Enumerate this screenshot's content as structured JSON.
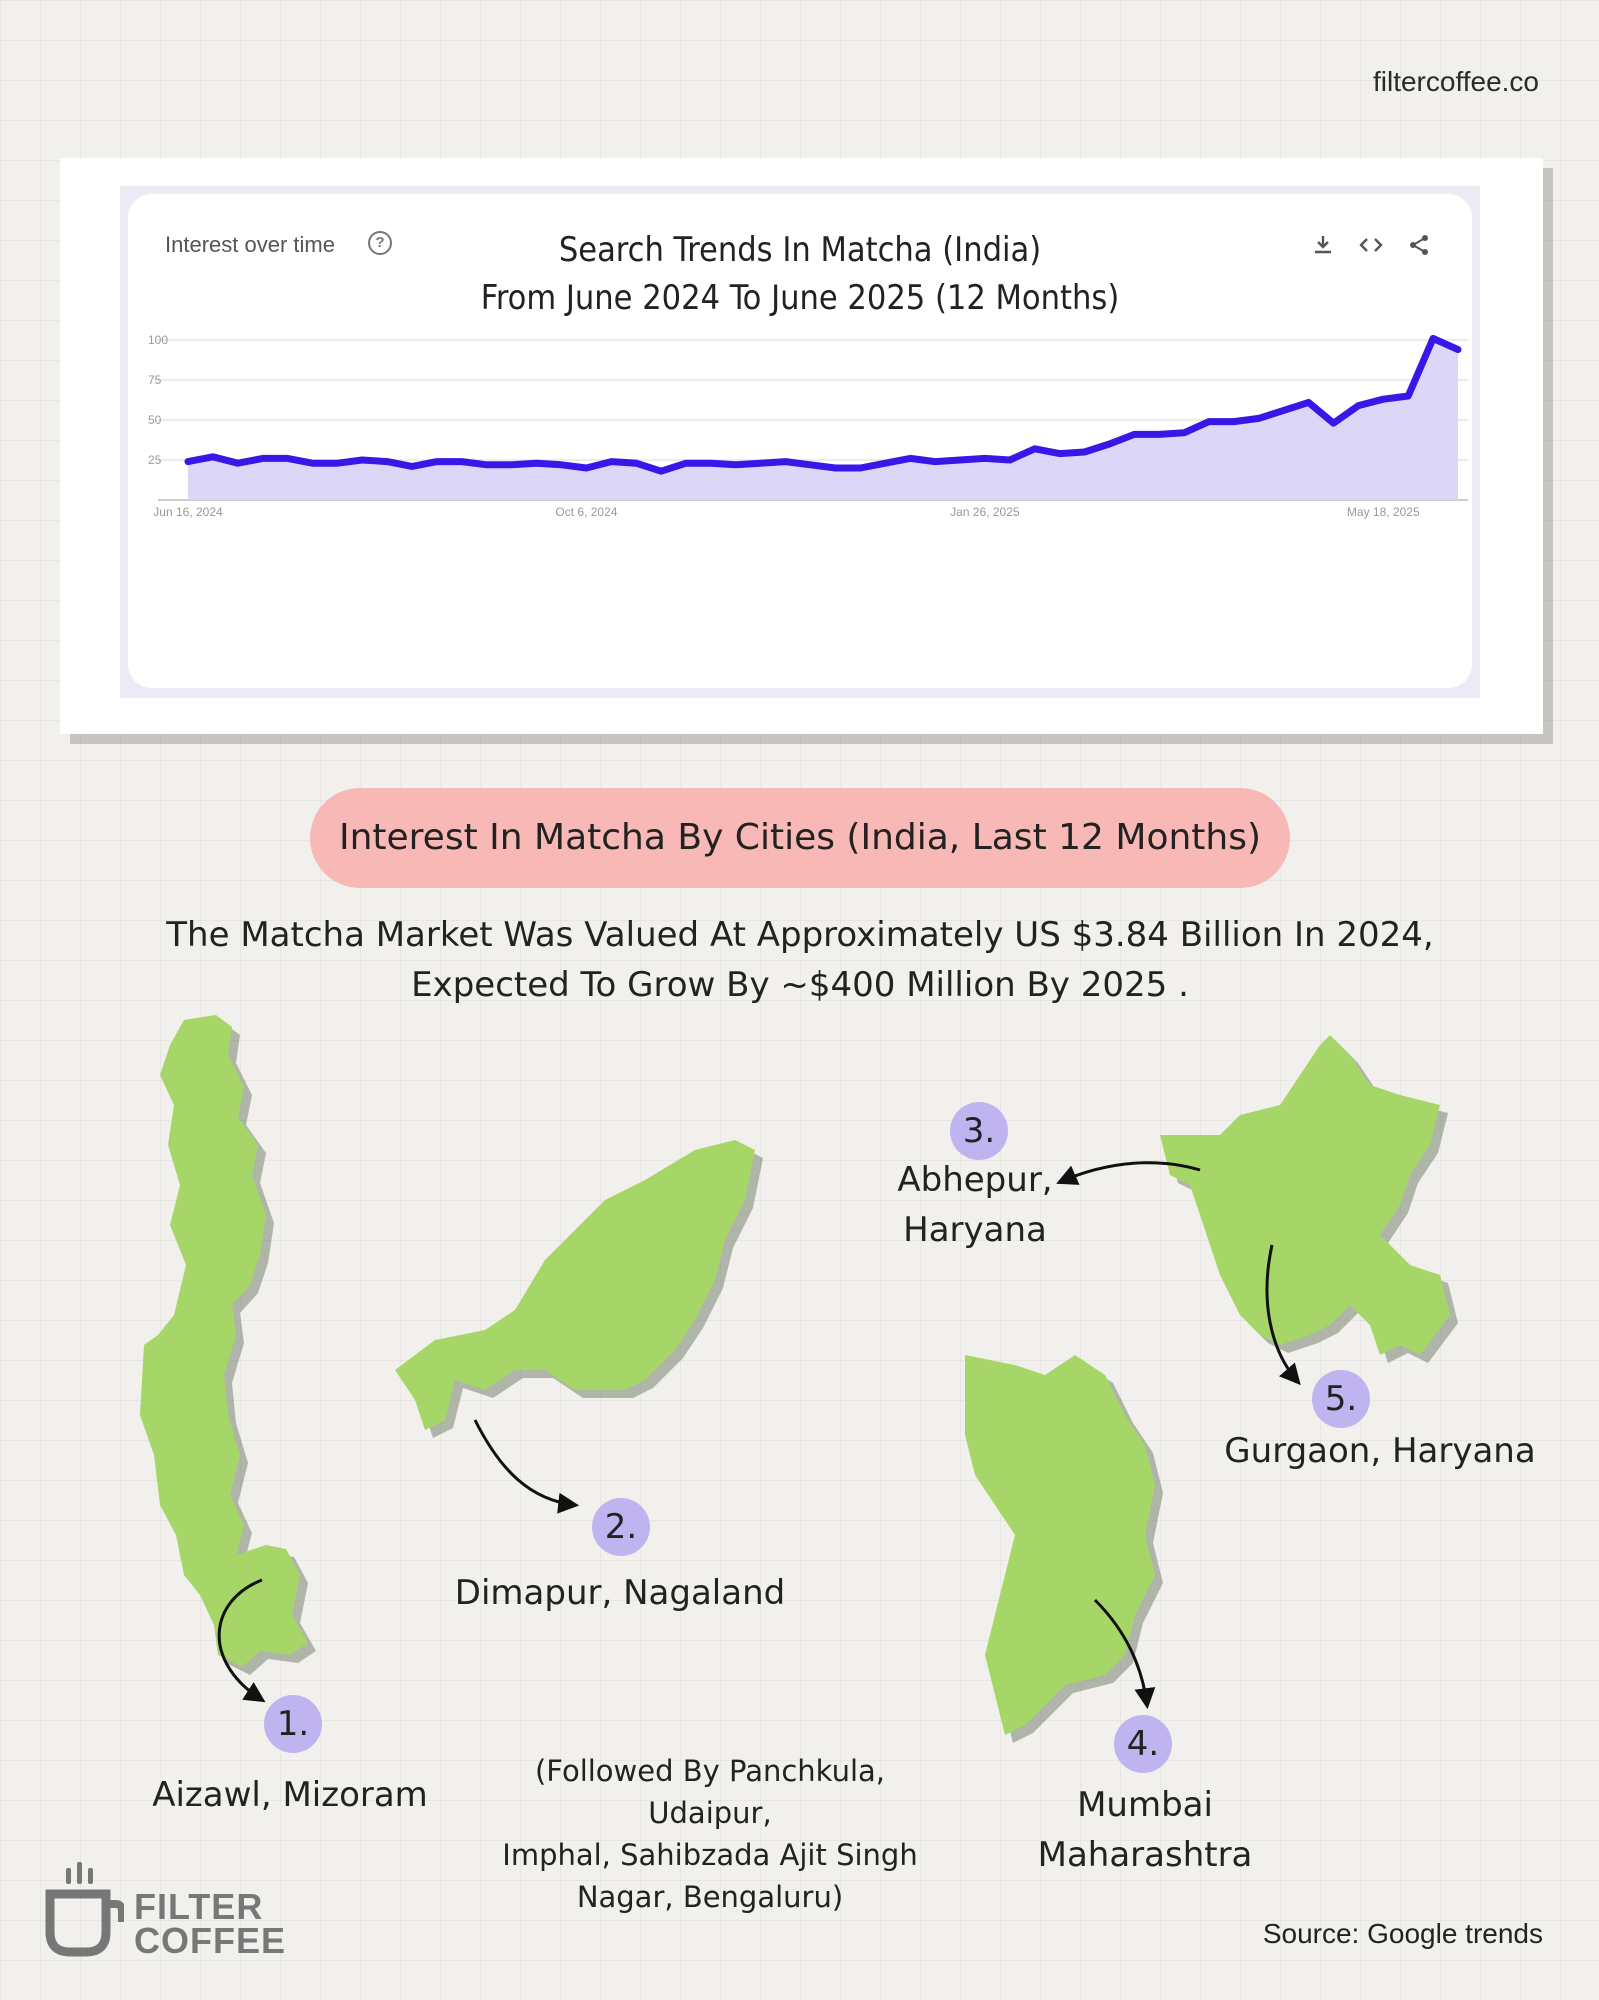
{
  "site": "filtercoffee.co",
  "chart_panel": {
    "label": "Interest over time",
    "title_line1": "Search Trends In Matcha (India)",
    "title_line2": "From June 2024 To June 2025 (12 Months)",
    "icons": [
      "download-icon",
      "embed-icon",
      "share-icon"
    ]
  },
  "chart_data": {
    "type": "area",
    "title": "Search Trends In Matcha (India) From June 2024 To June 2025 (12 Months)",
    "xlabel": "",
    "ylabel": "",
    "ylim": [
      0,
      100
    ],
    "yticks": [
      25,
      50,
      75,
      100
    ],
    "x_tick_labels": [
      "Jun 16, 2024",
      "Oct 6, 2024",
      "Jan 26, 2025",
      "May 18, 2025"
    ],
    "x": [
      "2024-06-16",
      "2024-06-23",
      "2024-06-30",
      "2024-07-07",
      "2024-07-14",
      "2024-07-21",
      "2024-07-28",
      "2024-08-04",
      "2024-08-11",
      "2024-08-18",
      "2024-08-25",
      "2024-09-01",
      "2024-09-08",
      "2024-09-15",
      "2024-09-22",
      "2024-09-29",
      "2024-10-06",
      "2024-10-13",
      "2024-10-20",
      "2024-10-27",
      "2024-11-03",
      "2024-11-10",
      "2024-11-17",
      "2024-11-24",
      "2024-12-01",
      "2024-12-08",
      "2024-12-15",
      "2024-12-22",
      "2024-12-29",
      "2025-01-05",
      "2025-01-12",
      "2025-01-19",
      "2025-01-26",
      "2025-02-02",
      "2025-02-09",
      "2025-02-16",
      "2025-02-23",
      "2025-03-02",
      "2025-03-09",
      "2025-03-16",
      "2025-03-23",
      "2025-03-30",
      "2025-04-06",
      "2025-04-13",
      "2025-04-20",
      "2025-04-27",
      "2025-05-04",
      "2025-05-11",
      "2025-05-18",
      "2025-05-25",
      "2025-06-01",
      "2025-06-08"
    ],
    "series": [
      {
        "values": [
          24,
          27,
          23,
          26,
          26,
          23,
          23,
          25,
          24,
          21,
          24,
          24,
          22,
          22,
          23,
          22,
          20,
          24,
          23,
          18,
          23,
          23,
          22,
          23,
          24,
          22,
          20,
          20,
          23,
          26,
          24,
          25,
          26,
          25,
          32,
          29,
          30,
          35,
          41,
          41,
          42,
          49,
          49,
          51,
          56,
          61,
          48,
          59,
          63,
          65,
          101,
          94
        ]
      }
    ]
  },
  "section": {
    "pill_title": "Interest In Matcha By Cities (India, Last 12 Months)",
    "subtitle_line1": "The Matcha Market Was Valued At Approximately US $3.84 Billion In 2024,",
    "subtitle_line2": "Expected To Grow By ~$400 Million By 2025 ."
  },
  "cities": [
    {
      "rank": "1.",
      "name": "Aizawl, Mizoram"
    },
    {
      "rank": "2.",
      "name": "Dimapur, Nagaland"
    },
    {
      "rank": "3.",
      "name_line1": "Abhepur,",
      "name_line2": "Haryana"
    },
    {
      "rank": "4.",
      "name_line1": "Mumbai",
      "name_line2": "Maharashtra"
    },
    {
      "rank": "5.",
      "name": "Gurgaon, Haryana"
    }
  ],
  "note": {
    "line1": "(Followed By Panchkula, Udaipur,",
    "line2": "Imphal, Sahibzada Ajit Singh",
    "line3": "Nagar, Bengaluru)"
  },
  "logo": {
    "line1": "FILTER",
    "line2": "COFFEE"
  },
  "source": "Source: Google trends",
  "colors": {
    "line": "#3a17e6",
    "area": "#d9d3f6",
    "map_green": "#a6d667",
    "badge": "#bfb4ef",
    "pill": "#f7b8b6"
  }
}
